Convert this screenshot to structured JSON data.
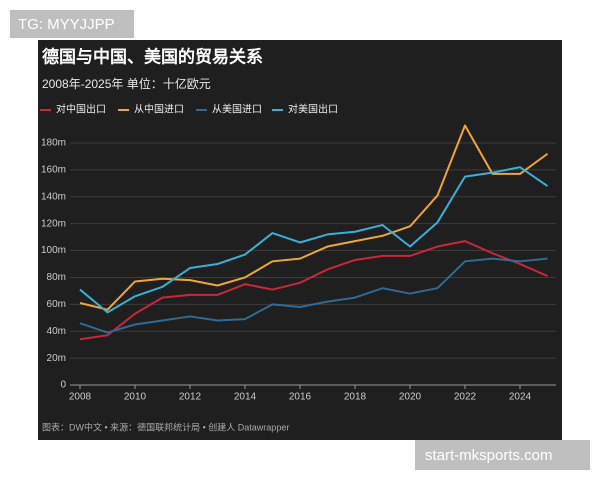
{
  "watermarks": [
    "TG: MYYJJPP",
    "start-mksports.com"
  ],
  "chart_data": {
    "type": "line",
    "title": "德国与中国、美国的贸易关系",
    "subtitle": "2008年-2025年 单位：十亿欧元",
    "source": "图表：DW中文 • 来源：德国联邦统计局 • 创建人 Datawrapper",
    "x": [
      2008,
      2009,
      2010,
      2011,
      2012,
      2013,
      2014,
      2015,
      2016,
      2017,
      2018,
      2019,
      2020,
      2021,
      2022,
      2023,
      2024,
      2025
    ],
    "xlim": [
      2008,
      2025
    ],
    "xticks": [
      2008,
      2010,
      2012,
      2014,
      2016,
      2018,
      2020,
      2022,
      2024
    ],
    "ylim": [
      0,
      180
    ],
    "yticks": [
      0,
      {
        "value": 20,
        "label": "20m"
      },
      {
        "value": 40,
        "label": "40m"
      },
      {
        "value": 60,
        "label": "60m"
      },
      {
        "value": 80,
        "label": "80m"
      },
      {
        "value": 100,
        "label": "100m"
      },
      {
        "value": 120,
        "label": "120m"
      },
      {
        "value": 140,
        "label": "140m"
      },
      {
        "value": 160,
        "label": "160m"
      },
      {
        "value": 180,
        "label": "180m"
      }
    ],
    "grid": true,
    "series": [
      {
        "name": "对中国出口",
        "color": "#c8283a",
        "values": [
          34,
          37,
          53,
          65,
          67,
          67,
          75,
          71,
          76,
          86,
          93,
          96,
          96,
          103,
          107,
          98,
          90,
          81
        ]
      },
      {
        "name": "从中国进口",
        "color": "#f0a637",
        "values": [
          61,
          56,
          77,
          79,
          78,
          74,
          80,
          92,
          94,
          103,
          107,
          111,
          118,
          141,
          193,
          157,
          157,
          172
        ]
      },
      {
        "name": "从美国进口",
        "color": "#2f6b94",
        "values": [
          46,
          39,
          45,
          48,
          51,
          48,
          49,
          60,
          58,
          62,
          65,
          72,
          68,
          72,
          92,
          94,
          92,
          94
        ]
      },
      {
        "name": "对美国出口",
        "color": "#3ab0d8",
        "values": [
          71,
          54,
          66,
          73,
          87,
          90,
          97,
          113,
          106,
          112,
          114,
          119,
          103,
          121,
          155,
          158,
          162,
          148
        ]
      }
    ]
  }
}
